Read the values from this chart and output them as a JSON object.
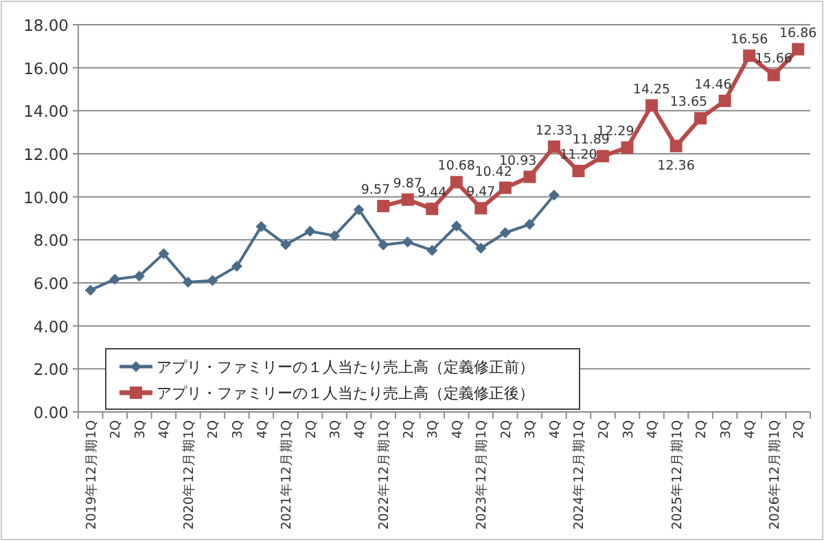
{
  "chart_data": {
    "type": "line",
    "categories": [
      "2019年12月期1Q",
      "2Q",
      "3Q",
      "4Q",
      "2020年12月期1Q",
      "2Q",
      "3Q",
      "4Q",
      "2021年12月期1Q",
      "2Q",
      "3Q",
      "4Q",
      "2022年12月期1Q",
      "2Q",
      "3Q",
      "4Q",
      "2023年12月期1Q",
      "2Q",
      "3Q",
      "4Q",
      "2024年12月期1Q",
      "2Q",
      "3Q",
      "4Q",
      "2025年12月期1Q",
      "2Q",
      "3Q",
      "4Q",
      "2026年12月期1Q",
      "2Q"
    ],
    "series": [
      {
        "name": "アプリ・ファミリーの１人当たり売上高（定義修正前）",
        "color": "#4a6b8a",
        "marker": "diamond",
        "values": [
          5.66,
          6.17,
          6.31,
          7.36,
          6.03,
          6.11,
          6.77,
          8.62,
          7.78,
          8.4,
          8.19,
          9.4,
          7.76,
          7.9,
          7.51,
          8.64,
          7.61,
          8.33,
          8.72,
          10.08,
          null,
          null,
          null,
          null,
          null,
          null,
          null,
          null,
          null,
          null
        ]
      },
      {
        "name": "アプリ・ファミリーの１人当たり売上高（定義修正後）",
        "color": "#b84a4a",
        "marker": "square",
        "value_labels": [
          null,
          null,
          null,
          null,
          null,
          null,
          null,
          null,
          null,
          null,
          null,
          null,
          "9.57",
          "9.87",
          "9.44",
          "10.68",
          "9.47",
          "10.42",
          "10.93",
          "12.33",
          "11.20",
          "11.89",
          "12.29",
          "14.25",
          "12.36",
          "13.65",
          "14.46",
          "16.56",
          "15.66",
          "16.86"
        ],
        "values": [
          null,
          null,
          null,
          null,
          null,
          null,
          null,
          null,
          null,
          null,
          null,
          null,
          9.57,
          9.87,
          9.44,
          10.68,
          9.47,
          10.42,
          10.93,
          12.33,
          11.2,
          11.89,
          12.29,
          14.25,
          12.36,
          13.65,
          14.46,
          16.56,
          15.66,
          16.86
        ]
      }
    ],
    "ylim": [
      0,
      18
    ],
    "yticks": [
      {
        "value": 0,
        "label": "0.00"
      },
      {
        "value": 2,
        "label": "2.00"
      },
      {
        "value": 4,
        "label": "4.00"
      },
      {
        "value": 6,
        "label": "6.00"
      },
      {
        "value": 8,
        "label": "8.00"
      },
      {
        "value": 10,
        "label": "10.00"
      },
      {
        "value": 12,
        "label": "12.00"
      },
      {
        "value": 14,
        "label": "14.00"
      },
      {
        "value": 16,
        "label": "16.00"
      },
      {
        "value": 18,
        "label": "18.00"
      }
    ],
    "grid": "y",
    "legend": "bottom left"
  }
}
